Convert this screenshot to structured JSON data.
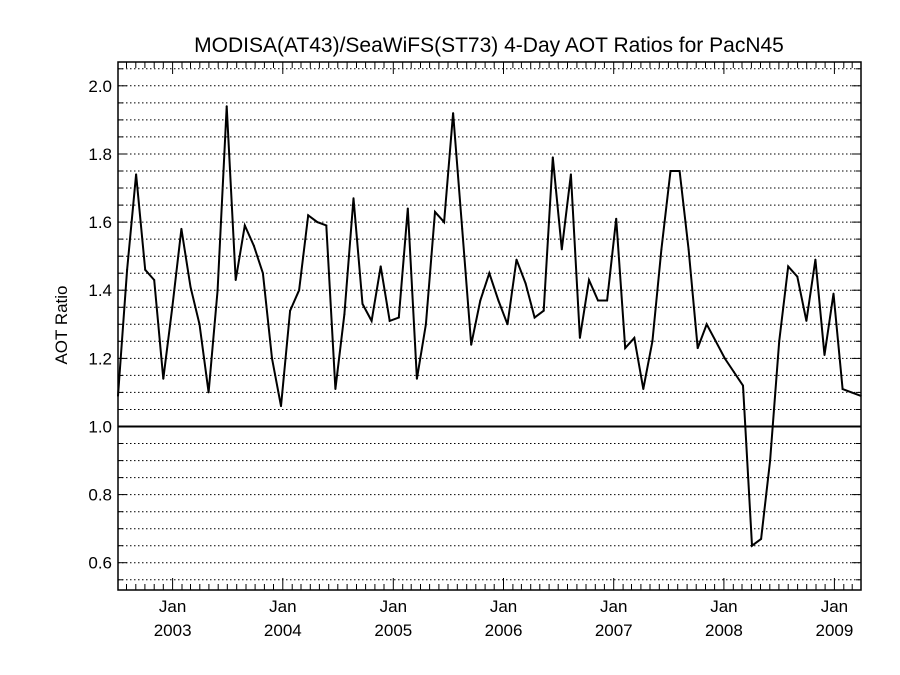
{
  "chart_data": {
    "type": "line",
    "title": "MODISA(AT43)/SeaWiFS(ST73) 4-Day AOT Ratios for PacN45",
    "xlabel": "",
    "ylabel": "AOT Ratio",
    "ylim": [
      0.52,
      2.07
    ],
    "xlim": [
      "2002-07-04",
      "2009-03-30"
    ],
    "y_ticks": [
      "0.6",
      "0.8",
      "1.0",
      "1.2",
      "1.4",
      "1.6",
      "1.8",
      "2.0"
    ],
    "x_ticks": [
      {
        "month": "Jan",
        "year": "2003",
        "date": "2003-01-01"
      },
      {
        "month": "Jan",
        "year": "2004",
        "date": "2004-01-01"
      },
      {
        "month": "Jan",
        "year": "2005",
        "date": "2005-01-01"
      },
      {
        "month": "Jan",
        "year": "2006",
        "date": "2006-01-01"
      },
      {
        "month": "Jan",
        "year": "2007",
        "date": "2007-01-01"
      },
      {
        "month": "Jan",
        "year": "2008",
        "date": "2008-01-01"
      },
      {
        "month": "Jan",
        "year": "2009",
        "date": "2009-01-01"
      }
    ],
    "reference_line": 1.0,
    "grid": "horizontal-dotted",
    "series": [
      {
        "x": [
          "2002-07-04",
          "2002-08-03",
          "2002-09-02",
          "2002-10-02",
          "2002-11-01",
          "2002-12-01",
          "2002-12-31",
          "2003-01-30",
          "2003-03-01",
          "2003-03-31",
          "2003-04-30",
          "2003-05-30",
          "2003-06-29",
          "2003-07-29",
          "2003-08-28",
          "2003-09-27",
          "2003-10-27",
          "2003-11-26",
          "2003-12-26",
          "2004-01-25",
          "2004-02-24",
          "2004-03-25",
          "2004-04-24",
          "2004-05-24",
          "2004-06-23",
          "2004-07-23",
          "2004-08-22",
          "2004-09-21",
          "2004-10-21",
          "2004-11-20",
          "2004-12-20",
          "2005-01-19",
          "2005-02-18",
          "2005-03-20",
          "2005-04-19",
          "2005-05-19",
          "2005-06-18",
          "2005-07-18",
          "2005-08-17",
          "2005-09-16",
          "2005-10-16",
          "2005-11-15",
          "2005-12-15",
          "2006-01-14",
          "2006-02-13",
          "2006-03-15",
          "2006-04-14",
          "2006-05-14",
          "2006-06-13",
          "2006-07-13",
          "2006-08-12",
          "2006-09-11",
          "2006-10-11",
          "2006-11-10",
          "2006-12-10",
          "2007-01-09",
          "2007-02-08",
          "2007-03-10",
          "2007-04-09",
          "2007-05-09",
          "2007-06-08",
          "2007-07-08",
          "2007-08-07",
          "2007-09-06",
          "2007-10-06",
          "2007-11-05",
          "2007-12-05",
          "2008-01-04",
          "2008-02-03",
          "2008-03-04",
          "2008-04-03",
          "2008-05-03",
          "2008-06-02",
          "2008-07-02",
          "2008-08-01",
          "2008-08-31",
          "2008-09-30",
          "2008-10-30",
          "2008-11-29",
          "2008-12-29",
          "2009-01-28",
          "2009-02-27",
          "2009-03-29"
        ],
        "values": [
          1.09,
          1.46,
          1.74,
          1.46,
          1.43,
          1.14,
          1.35,
          1.58,
          1.41,
          1.3,
          1.1,
          1.4,
          1.94,
          1.43,
          1.59,
          1.53,
          1.45,
          1.2,
          1.06,
          1.34,
          1.4,
          1.62,
          1.6,
          1.59,
          1.11,
          1.33,
          1.67,
          1.36,
          1.31,
          1.47,
          1.31,
          1.32,
          1.64,
          1.14,
          1.3,
          1.63,
          1.6,
          1.92,
          1.58,
          1.24,
          1.37,
          1.45,
          1.37,
          1.3,
          1.49,
          1.42,
          1.32,
          1.34,
          1.79,
          1.52,
          1.74,
          1.26,
          1.43,
          1.37,
          1.37,
          1.61,
          1.23,
          1.26,
          1.11,
          1.25,
          1.52,
          1.75,
          1.75,
          1.52,
          1.23,
          1.3,
          1.25,
          1.2,
          1.16,
          1.12,
          0.65,
          0.67,
          0.9,
          1.25,
          1.47,
          1.44,
          1.31,
          1.49,
          1.21,
          1.39,
          1.11,
          1.1,
          1.09
        ]
      }
    ]
  }
}
